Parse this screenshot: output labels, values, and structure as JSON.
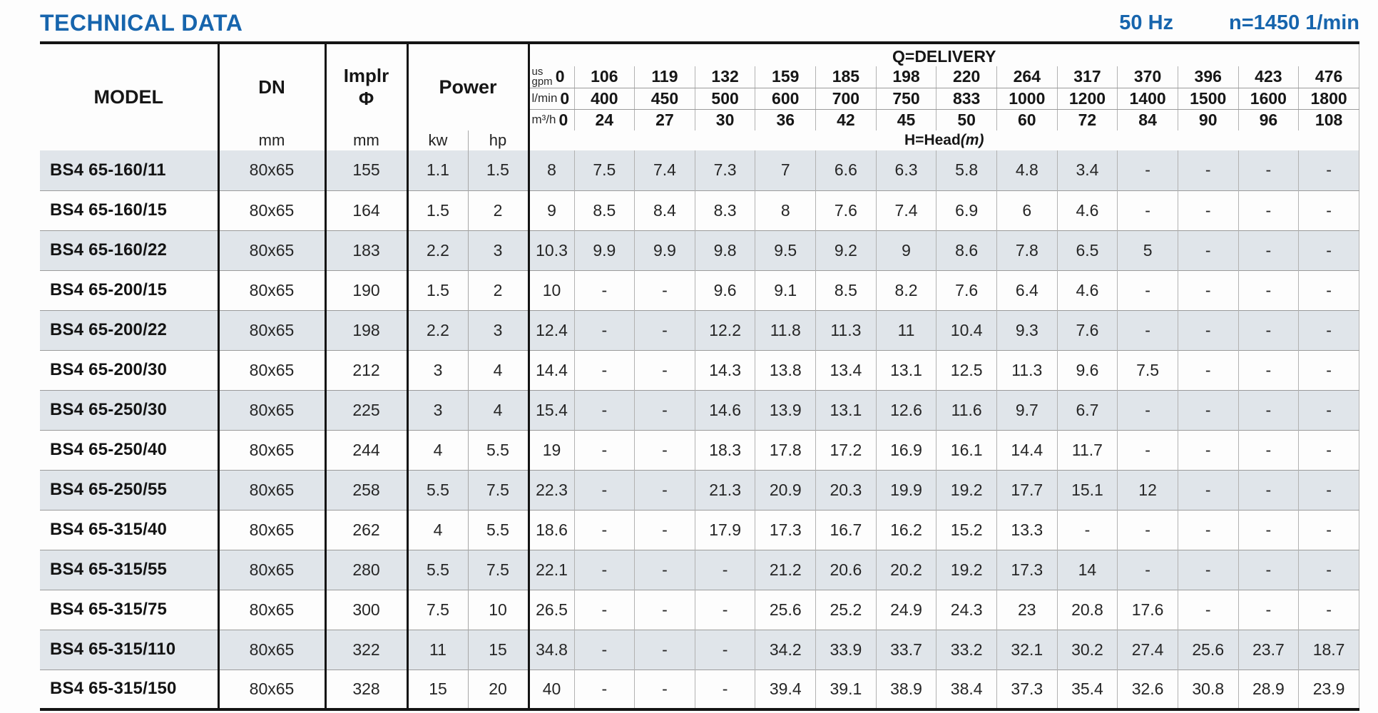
{
  "header": {
    "title": "TECHNICAL DATA",
    "frequency": "50 Hz",
    "speed": "n=1450 1/min"
  },
  "table": {
    "columns": {
      "model": "MODEL",
      "dn": "DN",
      "dn_unit": "mm",
      "impeller_line1": "Implr",
      "impeller_line2": "Φ",
      "impeller_unit": "mm",
      "power": "Power",
      "power_kw": "kw",
      "power_hp": "hp",
      "delivery_title": "Q=DELIVERY",
      "head_title": "H=Head",
      "head_unit": "(m)",
      "gpm_label": "us\ngpm",
      "lmin_label": "l/min",
      "m3h_label": "m³/h"
    },
    "delivery": {
      "us_gpm": [
        "0",
        "106",
        "119",
        "132",
        "159",
        "185",
        "198",
        "220",
        "264",
        "317",
        "370",
        "396",
        "423",
        "476"
      ],
      "l_min": [
        "0",
        "400",
        "450",
        "500",
        "600",
        "700",
        "750",
        "833",
        "1000",
        "1200",
        "1400",
        "1500",
        "1600",
        "1800"
      ],
      "m3_h": [
        "0",
        "24",
        "27",
        "30",
        "36",
        "42",
        "45",
        "50",
        "60",
        "72",
        "84",
        "90",
        "96",
        "108"
      ]
    },
    "rows": [
      {
        "model": "BS4 65-160/11",
        "dn": "80x65",
        "impeller": "155",
        "kw": "1.1",
        "hp": "1.5",
        "head": [
          "8",
          "7.5",
          "7.4",
          "7.3",
          "7",
          "6.6",
          "6.3",
          "5.8",
          "4.8",
          "3.4",
          "-",
          "-",
          "-",
          "-"
        ]
      },
      {
        "model": "BS4 65-160/15",
        "dn": "80x65",
        "impeller": "164",
        "kw": "1.5",
        "hp": "2",
        "head": [
          "9",
          "8.5",
          "8.4",
          "8.3",
          "8",
          "7.6",
          "7.4",
          "6.9",
          "6",
          "4.6",
          "-",
          "-",
          "-",
          "-"
        ]
      },
      {
        "model": "BS4 65-160/22",
        "dn": "80x65",
        "impeller": "183",
        "kw": "2.2",
        "hp": "3",
        "head": [
          "10.3",
          "9.9",
          "9.9",
          "9.8",
          "9.5",
          "9.2",
          "9",
          "8.6",
          "7.8",
          "6.5",
          "5",
          "-",
          "-",
          "-"
        ]
      },
      {
        "model": "BS4 65-200/15",
        "dn": "80x65",
        "impeller": "190",
        "kw": "1.5",
        "hp": "2",
        "head": [
          "10",
          "-",
          "-",
          "9.6",
          "9.1",
          "8.5",
          "8.2",
          "7.6",
          "6.4",
          "4.6",
          "-",
          "-",
          "-",
          "-"
        ]
      },
      {
        "model": "BS4 65-200/22",
        "dn": "80x65",
        "impeller": "198",
        "kw": "2.2",
        "hp": "3",
        "head": [
          "12.4",
          "-",
          "-",
          "12.2",
          "11.8",
          "11.3",
          "11",
          "10.4",
          "9.3",
          "7.6",
          "-",
          "-",
          "-",
          "-"
        ]
      },
      {
        "model": "BS4 65-200/30",
        "dn": "80x65",
        "impeller": "212",
        "kw": "3",
        "hp": "4",
        "head": [
          "14.4",
          "-",
          "-",
          "14.3",
          "13.8",
          "13.4",
          "13.1",
          "12.5",
          "11.3",
          "9.6",
          "7.5",
          "-",
          "-",
          "-"
        ]
      },
      {
        "model": "BS4 65-250/30",
        "dn": "80x65",
        "impeller": "225",
        "kw": "3",
        "hp": "4",
        "head": [
          "15.4",
          "-",
          "-",
          "14.6",
          "13.9",
          "13.1",
          "12.6",
          "11.6",
          "9.7",
          "6.7",
          "-",
          "-",
          "-",
          "-"
        ]
      },
      {
        "model": "BS4 65-250/40",
        "dn": "80x65",
        "impeller": "244",
        "kw": "4",
        "hp": "5.5",
        "head": [
          "19",
          "-",
          "-",
          "18.3",
          "17.8",
          "17.2",
          "16.9",
          "16.1",
          "14.4",
          "11.7",
          "-",
          "-",
          "-",
          "-"
        ]
      },
      {
        "model": "BS4 65-250/55",
        "dn": "80x65",
        "impeller": "258",
        "kw": "5.5",
        "hp": "7.5",
        "head": [
          "22.3",
          "-",
          "-",
          "21.3",
          "20.9",
          "20.3",
          "19.9",
          "19.2",
          "17.7",
          "15.1",
          "12",
          "-",
          "-",
          "-"
        ]
      },
      {
        "model": "BS4 65-315/40",
        "dn": "80x65",
        "impeller": "262",
        "kw": "4",
        "hp": "5.5",
        "head": [
          "18.6",
          "-",
          "-",
          "17.9",
          "17.3",
          "16.7",
          "16.2",
          "15.2",
          "13.3",
          "-",
          "-",
          "-",
          "-",
          "-"
        ]
      },
      {
        "model": "BS4 65-315/55",
        "dn": "80x65",
        "impeller": "280",
        "kw": "5.5",
        "hp": "7.5",
        "head": [
          "22.1",
          "-",
          "-",
          "-",
          "21.2",
          "20.6",
          "20.2",
          "19.2",
          "17.3",
          "14",
          "-",
          "-",
          "-",
          "-"
        ]
      },
      {
        "model": "BS4 65-315/75",
        "dn": "80x65",
        "impeller": "300",
        "kw": "7.5",
        "hp": "10",
        "head": [
          "26.5",
          "-",
          "-",
          "-",
          "25.6",
          "25.2",
          "24.9",
          "24.3",
          "23",
          "20.8",
          "17.6",
          "-",
          "-",
          "-"
        ]
      },
      {
        "model": "BS4 65-315/110",
        "dn": "80x65",
        "impeller": "322",
        "kw": "11",
        "hp": "15",
        "head": [
          "34.8",
          "-",
          "-",
          "-",
          "34.2",
          "33.9",
          "33.7",
          "33.2",
          "32.1",
          "30.2",
          "27.4",
          "25.6",
          "23.7",
          "18.7"
        ]
      },
      {
        "model": "BS4 65-315/150",
        "dn": "80x65",
        "impeller": "328",
        "kw": "15",
        "hp": "20",
        "head": [
          "40",
          "-",
          "-",
          "-",
          "39.4",
          "39.1",
          "38.9",
          "38.4",
          "37.3",
          "35.4",
          "32.6",
          "30.8",
          "28.9",
          "23.9"
        ]
      }
    ]
  }
}
